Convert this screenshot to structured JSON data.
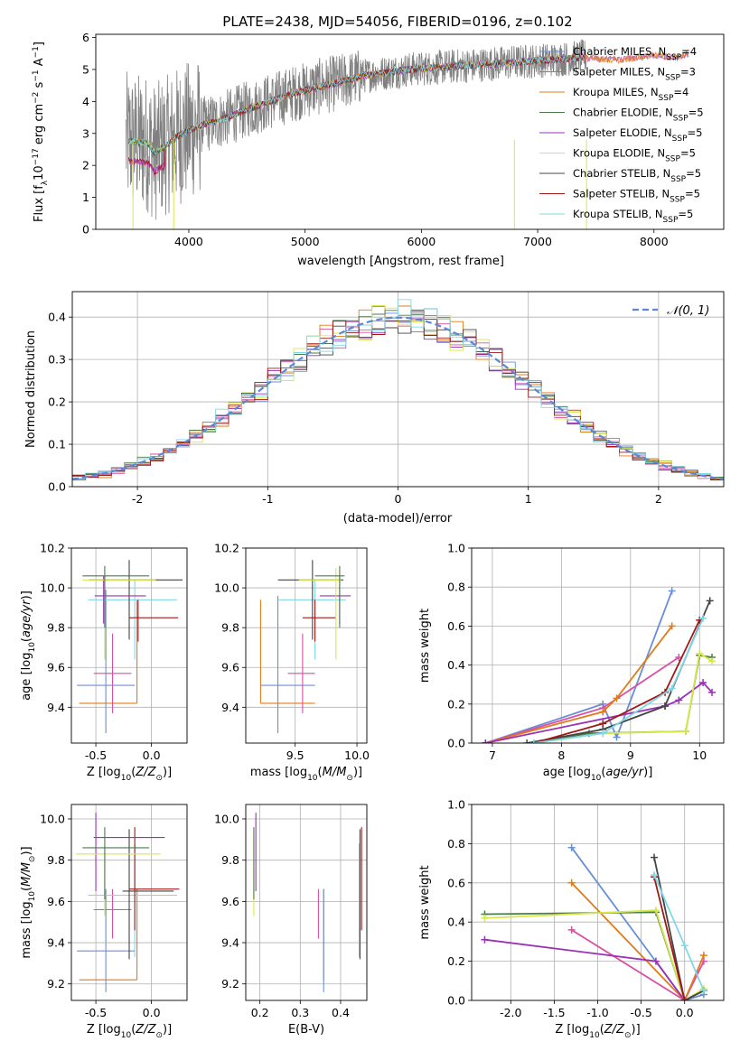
{
  "title": "PLATE=2438, MJD=54056, FIBERID=0196, z=0.102",
  "colors": {
    "Chabrier MILES": "#6a8fd8",
    "Salpeter MILES": "#d94fa3",
    "Kroupa MILES": "#e07b1a",
    "Chabrier ELODIE": "#4a7d4a",
    "Salpeter ELODIE": "#9b30b8",
    "Kroupa ELODIE": "#d8e84a",
    "Chabrier STELIB": "#444444",
    "Salpeter STELIB": "#a01818",
    "Kroupa STELIB": "#7fd8e8",
    "Data": "#808080"
  },
  "chart_data": [
    {
      "id": "spectrum",
      "type": "line",
      "xlabel": "wavelength [Angstrom, rest frame]",
      "ylabel": "Flux [f_λ 10⁻¹⁷ erg cm⁻² s⁻¹ A⁻¹]",
      "xlim": [
        3200,
        8600
      ],
      "ylim": [
        0,
        6.1
      ],
      "xticks": [
        "4000",
        "5000",
        "6000",
        "7000",
        "8000"
      ],
      "yticks": [
        "0",
        "1",
        "2",
        "3",
        "4",
        "5",
        "6"
      ],
      "grid": false,
      "legend_position": "right",
      "legend": [
        "Chabrier MILES, N_SSP=4",
        "Salpeter MILES, N_SSP=3",
        "Kroupa MILES, N_SSP=4",
        "Chabrier ELODIE, N_SSP=5",
        "Salpeter ELODIE, N_SSP=5",
        "Kroupa ELODIE, N_SSP=5",
        "Chabrier STELIB, N_SSP=5",
        "Salpeter STELIB, N_SSP=5",
        "Kroupa STELIB, N_SSP=5"
      ],
      "legend_display": [
        {
          "name": "Chabrier MILES, N",
          "sub": "SSP",
          "end": "=4"
        },
        {
          "name": "Salpeter MILES, N",
          "sub": "SSP",
          "end": "=3"
        },
        {
          "name": "Kroupa MILES, N",
          "sub": "SSP",
          "end": "=4"
        },
        {
          "name": "Chabrier ELODIE, N",
          "sub": "SSP",
          "end": "=5"
        },
        {
          "name": "Salpeter ELODIE, N",
          "sub": "SSP",
          "end": "=5"
        },
        {
          "name": "Kroupa ELODIE, N",
          "sub": "SSP",
          "end": "=5"
        },
        {
          "name": "Chabrier STELIB, N",
          "sub": "SSP",
          "end": "=5"
        },
        {
          "name": "Salpeter STELIB, N",
          "sub": "SSP",
          "end": "=5"
        },
        {
          "name": "Kroupa STELIB, N",
          "sub": "SSP",
          "end": "=5"
        }
      ],
      "model_continuum": {
        "x": [
          3500,
          3650,
          3700,
          3800,
          3900,
          4000,
          4100,
          4300,
          4500,
          4700,
          4900,
          5100,
          5300,
          5500,
          5700,
          5900,
          6100,
          6300,
          6500,
          6700,
          6900,
          7100,
          7300,
          7400
        ],
        "y": [
          2.75,
          2.7,
          2.4,
          2.6,
          2.9,
          3.1,
          3.25,
          3.45,
          3.75,
          4.0,
          4.25,
          4.45,
          4.6,
          4.8,
          4.9,
          5.0,
          5.05,
          5.1,
          5.15,
          5.2,
          5.25,
          5.3,
          5.35,
          5.4
        ]
      },
      "extra_models": {
        "x": [
          7400,
          7700,
          8000,
          8200,
          8300
        ],
        "y": [
          5.35,
          5.3,
          5.45,
          5.35,
          5.5
        ]
      }
    },
    {
      "id": "residuals",
      "type": "line",
      "xlabel": "(data-model)/error",
      "ylabel": "Normed distribution",
      "xlim": [
        -2.5,
        2.5
      ],
      "ylim": [
        0,
        0.46
      ],
      "xticks": [
        -2,
        -1,
        0,
        1,
        2
      ],
      "yticks": [
        0.0,
        0.1,
        0.2,
        0.3,
        0.4
      ],
      "grid": true,
      "legend": [
        "𝒩(0, 1)"
      ],
      "legend_position": "top-right",
      "histogram_bin_width": 0.1
    },
    {
      "id": "Z-vs-age",
      "type": "scatter",
      "xlabel": "Z [log10(Z/Z⊙)]",
      "ylabel": "age [log10(age/yr)]",
      "xlim": [
        -0.72,
        0.32
      ],
      "ylim": [
        9.22,
        10.2
      ],
      "xticks": [
        -0.5,
        0.0
      ],
      "yticks": [
        9.4,
        9.6,
        9.8,
        10.0,
        10.2
      ],
      "grid": true,
      "errorbars": [
        {
          "model": "Kroupa MILES",
          "x": -0.13,
          "xerr": [
            0.52,
            0.0
          ],
          "y": 9.42,
          "yerr": [
            0.0,
            0.52
          ]
        },
        {
          "model": "Chabrier MILES",
          "x": -0.41,
          "xerr": [
            0.26,
            0.26
          ],
          "y": 9.51,
          "yerr": [
            0.24,
            0.48
          ]
        },
        {
          "model": "Salpeter MILES",
          "x": -0.35,
          "xerr": [
            0.17,
            0.17
          ],
          "y": 9.57,
          "yerr": [
            0.2,
            0.2
          ]
        },
        {
          "model": "Kroupa STELIB",
          "x": -0.15,
          "xerr": [
            0.42,
            0.38
          ],
          "y": 9.94,
          "yerr": [
            0.3,
            0.1
          ]
        },
        {
          "model": "Chabrier STELIB",
          "x": -0.2,
          "xerr": [
            0.36,
            0.48
          ],
          "y": 10.04,
          "yerr": [
            0.3,
            0.1
          ]
        },
        {
          "model": "Salpeter STELIB",
          "x": -0.12,
          "xerr": [
            0.08,
            0.36
          ],
          "y": 9.85,
          "yerr": [
            0.12,
            0.09
          ]
        },
        {
          "model": "Salpeter ELODIE",
          "x": -0.43,
          "xerr": [
            0.08,
            0.38
          ],
          "y": 9.96,
          "yerr": [
            0.14,
            0.1
          ]
        },
        {
          "model": "Kroupa ELODIE",
          "x": -0.42,
          "xerr": [
            0.2,
            0.46
          ],
          "y": 10.04,
          "yerr": [
            0.4,
            0.06
          ]
        },
        {
          "model": "Chabrier ELODIE",
          "x": -0.42,
          "xerr": [
            0.2,
            0.4
          ],
          "y": 10.06,
          "yerr": [
            0.26,
            0.05
          ]
        }
      ]
    },
    {
      "id": "mass-vs-age",
      "type": "scatter",
      "xlabel": "mass [log10(M/M⊙)]",
      "ylabel": "age [log10(age/yr)]",
      "xlim": [
        9.1,
        10.08
      ],
      "ylim": [
        9.22,
        10.2
      ],
      "xticks": [
        9.5,
        10.0
      ],
      "yticks": [
        9.4,
        9.6,
        9.8,
        10.0,
        10.2
      ],
      "grid": true,
      "errorbars": [
        {
          "model": "Kroupa MILES",
          "x": 9.22,
          "xerr": [
            0.0,
            0.44
          ],
          "y": 9.42,
          "yerr": [
            0.0,
            0.52
          ]
        },
        {
          "model": "Chabrier MILES",
          "x": 9.36,
          "xerr": [
            0.14,
            0.3
          ],
          "y": 9.51,
          "yerr": [
            0.24,
            0.45
          ]
        },
        {
          "model": "Salpeter MILES",
          "x": 9.56,
          "xerr": [
            0.12,
            0.1
          ],
          "y": 9.57,
          "yerr": [
            0.2,
            0.2
          ]
        },
        {
          "model": "Kroupa STELIB",
          "x": 9.66,
          "xerr": [
            0.3,
            0.25
          ],
          "y": 9.94,
          "yerr": [
            0.3,
            0.1
          ]
        },
        {
          "model": "Chabrier STELIB",
          "x": 9.64,
          "xerr": [
            0.28,
            0.25
          ],
          "y": 10.04,
          "yerr": [
            0.3,
            0.1
          ]
        },
        {
          "model": "Salpeter STELIB",
          "x": 9.66,
          "xerr": [
            0.1,
            0.17
          ],
          "y": 9.85,
          "yerr": [
            0.12,
            0.09
          ]
        },
        {
          "model": "Salpeter ELODIE",
          "x": 9.86,
          "xerr": [
            0.16,
            0.09
          ],
          "y": 9.96,
          "yerr": [
            0.14,
            0.1
          ]
        },
        {
          "model": "Kroupa ELODIE",
          "x": 9.83,
          "xerr": [
            0.3,
            0.04
          ],
          "y": 10.04,
          "yerr": [
            0.4,
            0.06
          ]
        },
        {
          "model": "Chabrier ELODIE",
          "x": 9.86,
          "xerr": [
            0.2,
            0.04
          ],
          "y": 10.06,
          "yerr": [
            0.26,
            0.05
          ]
        }
      ]
    },
    {
      "id": "age-vs-weight",
      "type": "line",
      "xlabel": "age [log10(age/yr)]",
      "ylabel": "mass weight",
      "xlim": [
        6.7,
        10.35
      ],
      "ylim": [
        0,
        1.0
      ],
      "xticks": [
        7,
        8,
        9,
        10
      ],
      "yticks": [
        0.0,
        0.2,
        0.4,
        0.6,
        0.8,
        1.0
      ],
      "grid": true,
      "series": [
        {
          "model": "Chabrier MILES",
          "x": [
            6.9,
            8.6,
            8.8,
            9.6
          ],
          "y": [
            0.0,
            0.2,
            0.03,
            0.78
          ]
        },
        {
          "model": "Salpeter MILES",
          "x": [
            6.9,
            8.6,
            9.7
          ],
          "y": [
            0.0,
            0.18,
            0.44
          ]
        },
        {
          "model": "Kroupa MILES",
          "x": [
            6.9,
            8.6,
            8.8,
            9.6
          ],
          "y": [
            0.0,
            0.16,
            0.23,
            0.6
          ]
        },
        {
          "model": "Chabrier ELODIE",
          "x": [
            7.6,
            8.4,
            9.8,
            10.0,
            10.18
          ],
          "y": [
            0.0,
            0.05,
            0.06,
            0.45,
            0.44
          ]
        },
        {
          "model": "Salpeter ELODIE",
          "x": [
            6.9,
            9.5,
            9.7,
            10.05,
            10.18
          ],
          "y": [
            0.0,
            0.19,
            0.22,
            0.31,
            0.26
          ]
        },
        {
          "model": "Kroupa ELODIE",
          "x": [
            7.6,
            8.6,
            9.8,
            10.0,
            10.18
          ],
          "y": [
            0.0,
            0.05,
            0.06,
            0.46,
            0.42
          ]
        },
        {
          "model": "Chabrier STELIB",
          "x": [
            7.5,
            8.6,
            9.5,
            10.15
          ],
          "y": [
            0.0,
            0.07,
            0.19,
            0.73
          ]
        },
        {
          "model": "Salpeter STELIB",
          "x": [
            7.6,
            8.6,
            9.5,
            10.0
          ],
          "y": [
            0.0,
            0.1,
            0.26,
            0.63
          ]
        },
        {
          "model": "Kroupa STELIB",
          "x": [
            7.6,
            8.6,
            9.6,
            10.05
          ],
          "y": [
            0.0,
            0.05,
            0.28,
            0.64
          ]
        }
      ]
    },
    {
      "id": "Z-vs-mass",
      "type": "scatter",
      "xlabel": "Z [log10(Z/Z⊙)]",
      "ylabel": "mass [log10(M/M⊙)]",
      "xlim": [
        -0.72,
        0.32
      ],
      "ylim": [
        9.12,
        10.07
      ],
      "xticks": [
        -0.5,
        0.0
      ],
      "yticks": [
        9.2,
        9.4,
        9.6,
        9.8,
        10.0
      ],
      "grid": true,
      "errorbars": [
        {
          "model": "Kroupa MILES",
          "x": -0.13,
          "xerr": [
            0.52,
            0.0
          ],
          "y": 9.22,
          "yerr": [
            0.0,
            0.44
          ]
        },
        {
          "model": "Chabrier MILES",
          "x": -0.41,
          "xerr": [
            0.26,
            0.26
          ],
          "y": 9.36,
          "yerr": [
            0.2,
            0.3
          ]
        },
        {
          "model": "Salpeter MILES",
          "x": -0.35,
          "xerr": [
            0.17,
            0.17
          ],
          "y": 9.56,
          "yerr": [
            0.14,
            0.1
          ]
        },
        {
          "model": "Kroupa STELIB",
          "x": -0.15,
          "xerr": [
            0.42,
            0.38
          ],
          "y": 9.63,
          "yerr": [
            0.3,
            0.25
          ]
        },
        {
          "model": "Chabrier STELIB",
          "x": -0.2,
          "xerr": [
            0.06,
            0.4
          ],
          "y": 9.65,
          "yerr": [
            0.33,
            0.3
          ]
        },
        {
          "model": "Salpeter STELIB",
          "x": -0.15,
          "xerr": [
            0.05,
            0.4
          ],
          "y": 9.66,
          "yerr": [
            0.2,
            0.3
          ]
        },
        {
          "model": "Salpeter ELODIE",
          "x": -0.5,
          "xerr": [
            0.02,
            0.62
          ],
          "y": 9.91,
          "yerr": [
            0.26,
            0.12
          ]
        },
        {
          "model": "Kroupa ELODIE",
          "x": -0.42,
          "xerr": [
            0.26,
            0.5
          ],
          "y": 9.83,
          "yerr": [
            0.3,
            0.04
          ]
        },
        {
          "model": "Chabrier ELODIE",
          "x": -0.42,
          "xerr": [
            0.2,
            0.4
          ],
          "y": 9.86,
          "yerr": [
            0.25,
            0.1
          ]
        }
      ]
    },
    {
      "id": "ebv-vs-mass",
      "type": "scatter",
      "xlabel": "E(B-V)",
      "ylabel": "mass [log10(M/M⊙)]",
      "xlim": [
        0.165,
        0.465
      ],
      "ylim": [
        9.12,
        10.07
      ],
      "xticks": [
        0.2,
        0.3,
        0.4
      ],
      "yticks": [
        9.2,
        9.4,
        9.6,
        9.8,
        10.0
      ],
      "grid": true,
      "errorbars": [
        {
          "model": "Kroupa ELODIE",
          "x": 0.185,
          "y": 9.83,
          "yerr": [
            0.3,
            0.1
          ]
        },
        {
          "model": "Chabrier ELODIE",
          "x": 0.185,
          "y": 9.86,
          "yerr": [
            0.25,
            0.1
          ]
        },
        {
          "model": "Salpeter ELODIE",
          "x": 0.19,
          "y": 9.91,
          "yerr": [
            0.26,
            0.12
          ]
        },
        {
          "model": "Salpeter MILES",
          "x": 0.345,
          "y": 9.56,
          "yerr": [
            0.14,
            0.1
          ]
        },
        {
          "model": "Kroupa MILES",
          "x": 0.358,
          "y": 9.22,
          "yerr": [
            0.0,
            0.44
          ]
        },
        {
          "model": "Chabrier MILES",
          "x": 0.358,
          "y": 9.36,
          "yerr": [
            0.2,
            0.3
          ]
        },
        {
          "model": "Kroupa STELIB",
          "x": 0.446,
          "y": 9.63,
          "yerr": [
            0.3,
            0.25
          ]
        },
        {
          "model": "Chabrier STELIB",
          "x": 0.448,
          "y": 9.65,
          "yerr": [
            0.33,
            0.3
          ]
        },
        {
          "model": "Salpeter STELIB",
          "x": 0.452,
          "y": 9.66,
          "yerr": [
            0.2,
            0.3
          ]
        }
      ]
    },
    {
      "id": "Z-vs-weight",
      "type": "line",
      "xlabel": "Z [log10(Z/Z⊙)]",
      "ylabel": "mass weight",
      "xlim": [
        -2.45,
        0.45
      ],
      "ylim": [
        0,
        1.0
      ],
      "xticks": [
        -2.0,
        -1.5,
        -1.0,
        -0.5,
        0.0
      ],
      "yticks": [
        0.0,
        0.2,
        0.4,
        0.6,
        0.8,
        1.0
      ],
      "grid": true,
      "series": [
        {
          "model": "Chabrier MILES",
          "x": [
            -1.3,
            0.0,
            0.22
          ],
          "y": [
            0.78,
            0.0,
            0.03
          ]
        },
        {
          "model": "Salpeter MILES",
          "x": [
            -1.3,
            0.0,
            0.22
          ],
          "y": [
            0.36,
            0.0,
            0.2
          ]
        },
        {
          "model": "Kroupa MILES",
          "x": [
            -1.3,
            0.0,
            0.22
          ],
          "y": [
            0.6,
            0.0,
            0.23
          ]
        },
        {
          "model": "Chabrier ELODIE",
          "x": [
            -2.3,
            -0.33,
            0.0,
            0.22
          ],
          "y": [
            0.44,
            0.45,
            0.0,
            0.05
          ]
        },
        {
          "model": "Salpeter ELODIE",
          "x": [
            -2.3,
            -0.33,
            0.0
          ],
          "y": [
            0.31,
            0.2,
            0.0
          ]
        },
        {
          "model": "Kroupa ELODIE",
          "x": [
            -2.3,
            -0.33,
            0.0,
            0.22
          ],
          "y": [
            0.42,
            0.46,
            0.0,
            0.06
          ]
        },
        {
          "model": "Chabrier STELIB",
          "x": [
            -0.35,
            0.0,
            0.22
          ],
          "y": [
            0.73,
            0.0,
            0.05
          ]
        },
        {
          "model": "Salpeter STELIB",
          "x": [
            -0.35,
            0.0
          ],
          "y": [
            0.63,
            0.0
          ]
        },
        {
          "model": "Kroupa STELIB",
          "x": [
            -0.35,
            0.0,
            0.22
          ],
          "y": [
            0.64,
            0.28,
            0.05
          ]
        }
      ]
    }
  ]
}
